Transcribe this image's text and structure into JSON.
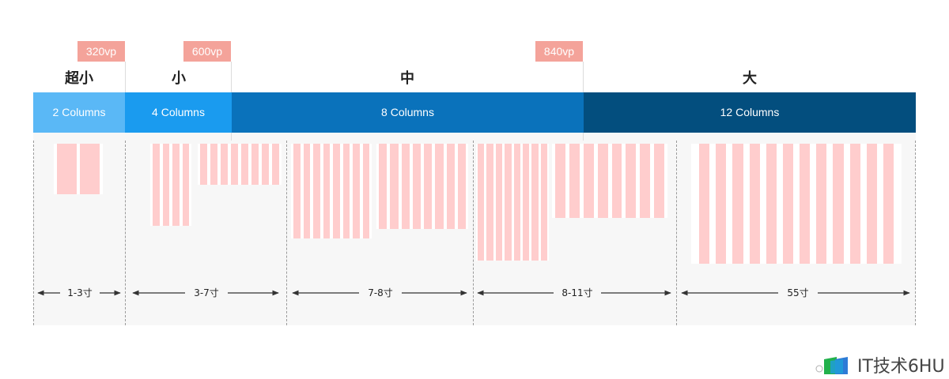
{
  "breakpoints": [
    "320vp",
    "600vp",
    "840vp"
  ],
  "breakpoint_tag_color": "#f4a39a",
  "size_classes": [
    "超小",
    "小",
    "中",
    "大"
  ],
  "columns": [
    {
      "label": "2 Columns",
      "color": "#5ab8f6"
    },
    {
      "label": "4 Columns",
      "color": "#1a9bef"
    },
    {
      "label": "8 Columns",
      "color": "#0a72bb"
    },
    {
      "label": "12 Columns",
      "color": "#034e7e"
    }
  ],
  "ranges": [
    "1-3寸",
    "3-7寸",
    "7-8寸",
    "8-11寸",
    "55寸"
  ],
  "devices": [
    {
      "stripes": 2
    },
    {
      "stripes": 4
    },
    {
      "stripes": 8
    },
    {
      "stripes": 8
    },
    {
      "stripes": 8
    },
    {
      "stripes": 8
    },
    {
      "stripes": 8
    },
    {
      "stripes": 12
    }
  ],
  "stripe_color": "#ffcdcd",
  "watermark": "IT技术6HU"
}
